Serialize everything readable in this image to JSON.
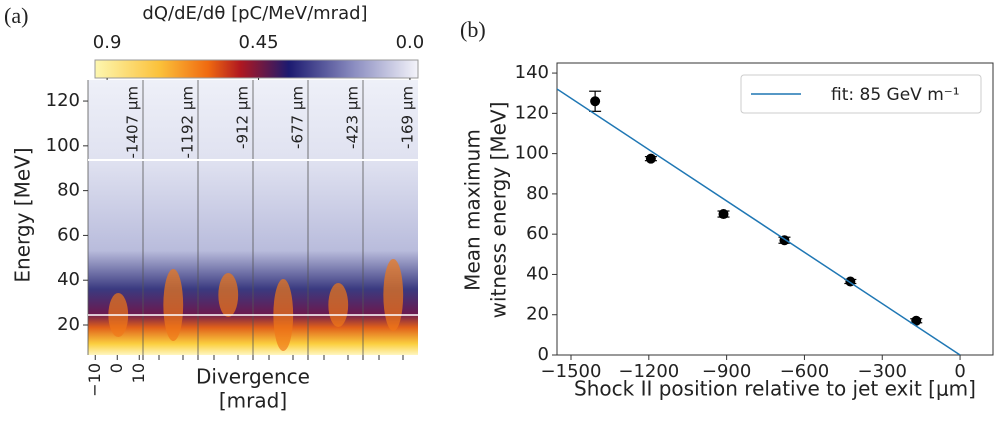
{
  "chart_data": [
    {
      "type": "heatmap",
      "panel_label": "(a)",
      "colorbar_label": "dQ/dE/dθ [pC/MeV/mrad]",
      "clim": [
        0.936,
        -0.024
      ],
      "cticks": [
        0.9,
        0.45,
        {
          "value": 0,
          "label": "0.0"
        }
      ],
      "ylabel": "Energy [MeV]",
      "ylim": [
        6.6,
        129.4
      ],
      "yticks": [
        20,
        40,
        60,
        80,
        100,
        120
      ],
      "xlabel": [
        "Divergence",
        "[mrad]"
      ],
      "xlim": [
        -13.3,
        11.7
      ],
      "xticks": [
        {
          "value": -10,
          "label": "−10"
        },
        0,
        10
      ],
      "strip_labels": [
        "-1407 μm",
        "-1192 μm",
        "-912 μm",
        "-677 μm",
        "-423 μm",
        "-169 μm"
      ]
    },
    {
      "type": "scatter",
      "panel_label": "(b)",
      "xlabel": "Shock II position relative to jet exit [μm]",
      "ylabel": [
        "Mean maximum",
        "witness energy [MeV]"
      ],
      "xlim": [
        -1554,
        127
      ],
      "ylim": [
        0,
        145
      ],
      "xticks": [
        {
          "value": -1500,
          "label": "−1500"
        },
        {
          "value": -1200,
          "label": "−1200"
        },
        {
          "value": -900,
          "label": "−900"
        },
        {
          "value": -600,
          "label": "−600"
        },
        {
          "value": -300,
          "label": "−300"
        },
        0
      ],
      "yticks": [
        0,
        20,
        40,
        60,
        80,
        100,
        120,
        140
      ],
      "legend": "upper right",
      "series": [
        {
          "color": "#000000",
          "x": [
            -1407,
            -1192,
            -912,
            -677,
            -423,
            -169
          ],
          "values": [
            126,
            97.5,
            70,
            57,
            36.5,
            17
          ],
          "errors": [
            5,
            1,
            1.5,
            1.5,
            1,
            1
          ]
        },
        {
          "name": "fit: 85 GeV m⁻¹",
          "type": "line",
          "color": "#1f77b4",
          "x": [
            -1600,
            0
          ],
          "values": [
            136,
            0
          ]
        }
      ]
    }
  ]
}
